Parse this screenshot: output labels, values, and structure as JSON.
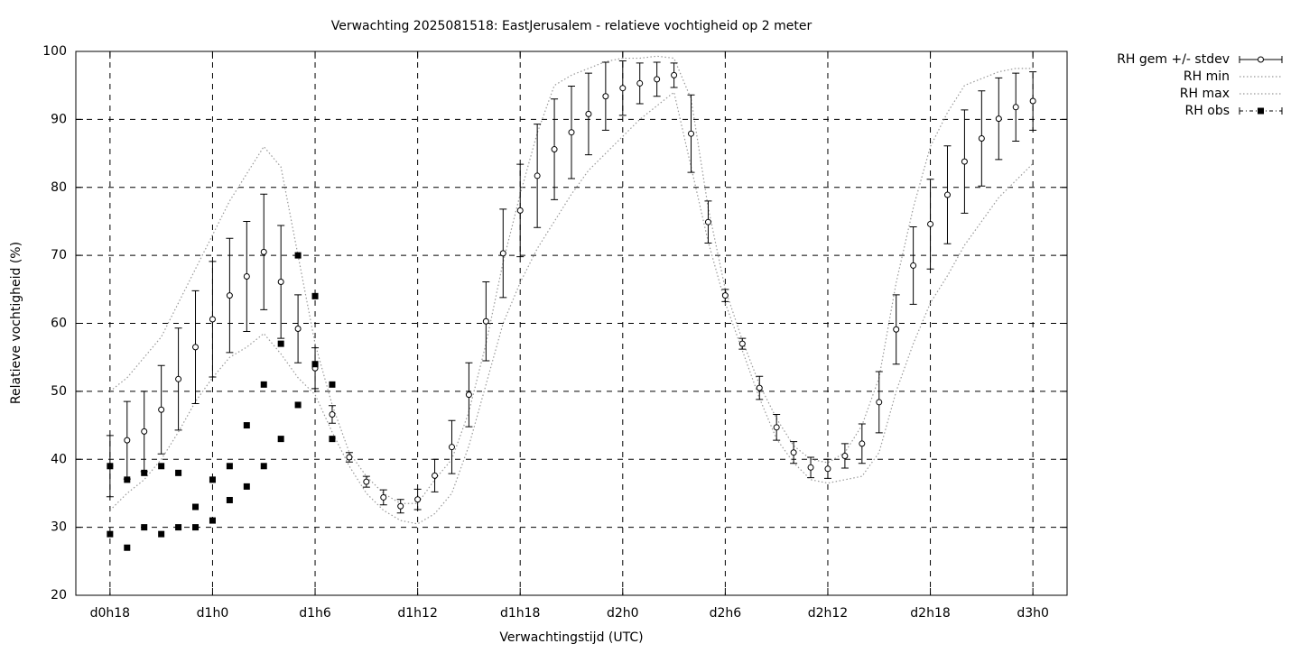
{
  "chart_data": {
    "type": "line",
    "title": "Verwachting 2025081518: EastJerusalem - relatieve vochtigheid op 2 meter",
    "x_label": "Verwachtingstijd (UTC)",
    "y_label": "Relatieve vochtigheid (%)",
    "xlim": [
      16,
      74
    ],
    "xticks": [
      {
        "value": 18,
        "label": "d0h18"
      },
      {
        "value": 24,
        "label": "d1h0"
      },
      {
        "value": 30,
        "label": "d1h6"
      },
      {
        "value": 36,
        "label": "d1h12"
      },
      {
        "value": 42,
        "label": "d1h18"
      },
      {
        "value": 48,
        "label": "d2h0"
      },
      {
        "value": 54,
        "label": "d2h6"
      },
      {
        "value": 60,
        "label": "d2h12"
      },
      {
        "value": 66,
        "label": "d2h18"
      },
      {
        "value": 72,
        "label": "d3h0"
      }
    ],
    "ylim": [
      20,
      100
    ],
    "yticks": [
      20,
      30,
      40,
      50,
      60,
      70,
      80,
      90,
      100
    ],
    "grid": true,
    "legend": "outside-top-right",
    "x": [
      18,
      19,
      20,
      21,
      22,
      23,
      24,
      25,
      26,
      27,
      28,
      29,
      30,
      31,
      32,
      33,
      34,
      35,
      36,
      37,
      38,
      39,
      40,
      41,
      42,
      43,
      44,
      45,
      46,
      47,
      48,
      49,
      50,
      51,
      52,
      53,
      54,
      55,
      56,
      57,
      58,
      59,
      60,
      61,
      62,
      63,
      64,
      65,
      66,
      67,
      68,
      69,
      70,
      71,
      72
    ],
    "series": [
      {
        "name": "RH gem +/- stdev",
        "style": "errorbar",
        "color": "#000000",
        "values": [
          39,
          42.8,
          44.1,
          47.3,
          51.8,
          56.5,
          60.6,
          64.1,
          66.9,
          70.5,
          66.1,
          59.2,
          53.4,
          46.6,
          40.3,
          36.7,
          34.4,
          33.1,
          34.1,
          37.6,
          41.8,
          49.5,
          60.3,
          70.3,
          76.6,
          81.7,
          85.6,
          88.1,
          90.8,
          93.4,
          94.6,
          95.3,
          95.9,
          96.5,
          87.9,
          74.9,
          64.1,
          57,
          50.5,
          44.7,
          41,
          38.8,
          38.6,
          40.5,
          42.3,
          48.4,
          59.1,
          68.5,
          74.6,
          78.9,
          83.8,
          87.2,
          90.1,
          91.8,
          92.7
        ],
        "errors": [
          4.5,
          5.7,
          5.9,
          6.5,
          7.5,
          8.3,
          8.5,
          8.4,
          8.1,
          8.5,
          8.3,
          5,
          3,
          1.3,
          0.7,
          0.8,
          1.1,
          1,
          1.5,
          2.4,
          3.9,
          4.7,
          5.8,
          6.5,
          6.8,
          7.6,
          7.4,
          6.8,
          6,
          5,
          4,
          3,
          2.5,
          1.8,
          5.7,
          3.1,
          0.9,
          0.8,
          1.7,
          1.9,
          1.6,
          1.5,
          1.4,
          1.8,
          2.9,
          4.5,
          5.1,
          5.7,
          6.6,
          7.2,
          7.6,
          7,
          6,
          5,
          4.3
        ]
      },
      {
        "name": "RH min",
        "style": "dotted",
        "color": "#999999",
        "values": [
          32.5,
          35,
          37,
          40,
          44,
          48.5,
          52,
          55,
          56.5,
          58.5,
          55.5,
          52,
          49.5,
          44,
          39,
          35,
          32.5,
          31,
          30.5,
          32,
          35,
          42,
          51,
          60,
          66,
          71,
          75,
          79,
          82.5,
          85,
          87.5,
          90,
          92,
          94,
          83,
          72,
          63,
          56,
          49,
          43,
          39.5,
          37,
          36.5,
          37,
          37.5,
          41,
          50,
          57,
          63,
          67,
          71.5,
          75,
          78.5,
          81,
          83.5
        ]
      },
      {
        "name": "RH max",
        "style": "dotted",
        "color": "#999999",
        "values": [
          50,
          52,
          55,
          58,
          63,
          68,
          73,
          78,
          82,
          86,
          83,
          70,
          57,
          48,
          41,
          37.5,
          35,
          33.5,
          33.5,
          37,
          40,
          47,
          57,
          69,
          79,
          88,
          95,
          96.5,
          97.5,
          98.5,
          99,
          99,
          99.3,
          99,
          93,
          77,
          65,
          57.5,
          51,
          46,
          42,
          40,
          39.5,
          41,
          45,
          52,
          66,
          77,
          86,
          91,
          95,
          96,
          97,
          97.5,
          97.5
        ]
      },
      {
        "name": "RH obs",
        "style": "points",
        "color": "#000000",
        "x": [
          18,
          18,
          19,
          19,
          20,
          20,
          21,
          21,
          22,
          22,
          23,
          23,
          24,
          24,
          25,
          25,
          26,
          26,
          27,
          27,
          28,
          28,
          29,
          29,
          30,
          30,
          31,
          31
        ],
        "values": [
          39,
          29,
          37,
          27,
          38,
          30,
          39,
          29,
          38,
          30,
          33,
          30,
          37,
          31,
          39,
          34,
          45,
          36,
          51,
          39,
          57,
          43,
          70,
          48,
          64,
          54,
          51,
          43
        ]
      }
    ]
  }
}
